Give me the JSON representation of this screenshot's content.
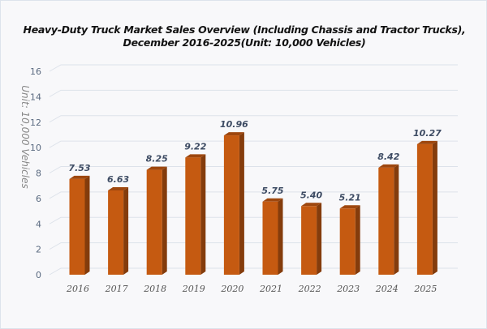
{
  "chart_data": {
    "type": "bar",
    "title_line1": "Heavy-Duty Truck Market Sales Overview (Including Chassis and Tractor Trucks),",
    "title_line2": "December 2016-2025(Unit: 10,000 Vehicles)",
    "xlabel": "",
    "ylabel": "Unit: 10,000 Vehicles",
    "categories": [
      "2016",
      "2017",
      "2018",
      "2019",
      "2020",
      "2021",
      "2022",
      "2023",
      "2024",
      "2025"
    ],
    "values": [
      7.53,
      6.63,
      8.25,
      9.22,
      10.96,
      5.75,
      5.4,
      5.21,
      8.42,
      10.27
    ],
    "value_labels": [
      "7.53",
      "6.63",
      "8.25",
      "9.22",
      "10.96",
      "5.75",
      "5.40",
      "5.21",
      "8.42",
      "10.27"
    ],
    "ylim": [
      0,
      16
    ],
    "yticks": [
      0,
      2,
      4,
      6,
      8,
      10,
      12,
      14,
      16
    ],
    "grid": true,
    "legend": "none",
    "colors": {
      "bar_front": "#c55a11",
      "bar_side": "#843c0c",
      "bar_top": "#9e470e",
      "grid": "#dde2ea"
    }
  }
}
